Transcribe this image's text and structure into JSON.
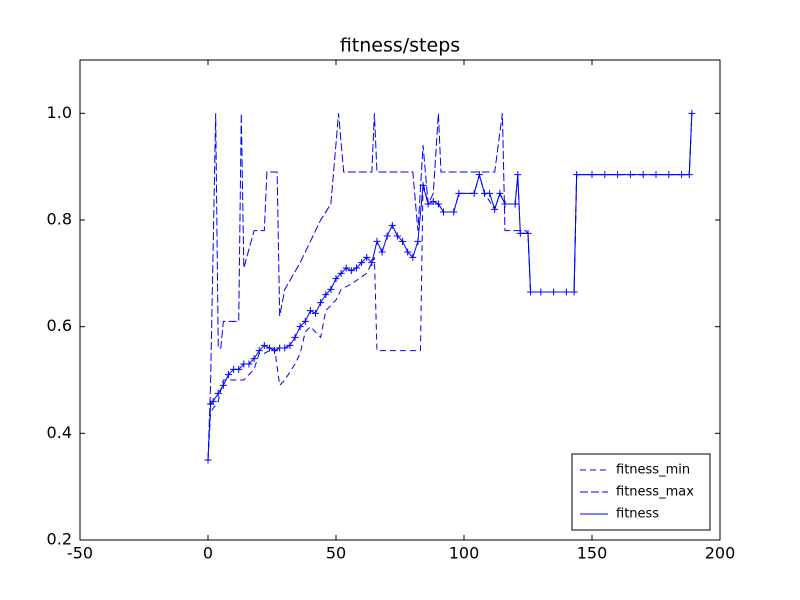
{
  "chart_data": {
    "type": "line",
    "title": "fitness/steps",
    "xlim": [
      -50,
      200
    ],
    "xticks": [
      -50,
      0,
      50,
      100,
      150,
      200
    ],
    "ylim": [
      0.2,
      1.1
    ],
    "yticks": [
      0.2,
      0.4,
      0.6,
      0.8,
      {
        "value": 1,
        "label": "1.0"
      }
    ],
    "legend": "lower right",
    "series": [
      {
        "name": "fitness_min",
        "color": "#0000ff",
        "style": "dashed",
        "x": [
          0,
          1,
          4,
          6,
          10,
          14,
          18,
          20,
          22,
          26,
          28,
          30,
          34,
          36,
          38,
          40,
          44,
          46,
          50,
          52,
          56,
          62,
          65,
          66,
          83,
          84,
          86,
          90,
          92,
          96,
          98,
          104,
          106,
          108,
          112,
          114,
          116,
          120,
          121,
          122,
          125,
          126,
          143,
          144,
          188,
          189
        ],
        "values": [
          0.35,
          0.44,
          0.46,
          0.5,
          0.5,
          0.5,
          0.52,
          0.55,
          0.55,
          0.56,
          0.49,
          0.5,
          0.53,
          0.55,
          0.59,
          0.6,
          0.58,
          0.63,
          0.65,
          0.67,
          0.68,
          0.7,
          0.73,
          0.555,
          0.555,
          0.87,
          0.83,
          0.83,
          0.815,
          0.815,
          0.85,
          0.85,
          0.885,
          0.85,
          0.82,
          0.85,
          0.83,
          0.83,
          0.885,
          0.775,
          0.775,
          0.665,
          0.665,
          0.885,
          0.885,
          1
        ]
      },
      {
        "name": "fitness_max",
        "color": "#0000ff",
        "style": "dashdot",
        "x": [
          0,
          1,
          3,
          4,
          5,
          6,
          12,
          13,
          14,
          18,
          22,
          23,
          27,
          28,
          30,
          36,
          40,
          44,
          48,
          51,
          53,
          64,
          65,
          66,
          80,
          82,
          84,
          86,
          88,
          90,
          91,
          108,
          112,
          115,
          116,
          124,
          125,
          126,
          143,
          144,
          188,
          189
        ],
        "values": [
          0.35,
          0.49,
          1,
          0.56,
          0.56,
          0.61,
          0.61,
          1,
          0.71,
          0.78,
          0.78,
          0.89,
          0.89,
          0.62,
          0.67,
          0.72,
          0.76,
          0.8,
          0.83,
          1,
          0.89,
          0.89,
          1,
          0.89,
          0.89,
          0.78,
          0.94,
          0.83,
          0.85,
          1,
          0.89,
          0.89,
          0.89,
          1,
          0.78,
          0.78,
          0.775,
          0.665,
          0.665,
          0.885,
          0.885,
          1
        ]
      },
      {
        "name": "fitness",
        "color": "#0000ff",
        "style": "solid",
        "marker": "+",
        "x": [
          0,
          1,
          2,
          4,
          6,
          8,
          10,
          12,
          14,
          16,
          18,
          20,
          22,
          24,
          26,
          28,
          30,
          32,
          34,
          36,
          38,
          40,
          42,
          44,
          46,
          48,
          50,
          52,
          54,
          56,
          58,
          60,
          62,
          64,
          66,
          68,
          70,
          72,
          74,
          76,
          78,
          80,
          82,
          84,
          86,
          88,
          90,
          92,
          96,
          98,
          104,
          106,
          108,
          110,
          112,
          114,
          116,
          120,
          121,
          122,
          125,
          126,
          130,
          135,
          140,
          143,
          144,
          150,
          155,
          160,
          165,
          170,
          175,
          180,
          185,
          188,
          189
        ],
        "values": [
          0.35,
          0.455,
          0.46,
          0.475,
          0.49,
          0.51,
          0.52,
          0.52,
          0.53,
          0.53,
          0.54,
          0.555,
          0.565,
          0.56,
          0.555,
          0.56,
          0.56,
          0.565,
          0.58,
          0.6,
          0.61,
          0.63,
          0.625,
          0.645,
          0.66,
          0.67,
          0.69,
          0.7,
          0.71,
          0.705,
          0.71,
          0.72,
          0.73,
          0.72,
          0.76,
          0.74,
          0.77,
          0.79,
          0.77,
          0.76,
          0.74,
          0.73,
          0.76,
          0.865,
          0.83,
          0.835,
          0.83,
          0.815,
          0.815,
          0.85,
          0.85,
          0.885,
          0.85,
          0.85,
          0.82,
          0.85,
          0.83,
          0.83,
          0.885,
          0.775,
          0.775,
          0.665,
          0.665,
          0.665,
          0.665,
          0.665,
          0.885,
          0.885,
          0.885,
          0.885,
          0.885,
          0.885,
          0.885,
          0.885,
          0.885,
          0.885,
          1
        ]
      }
    ]
  }
}
